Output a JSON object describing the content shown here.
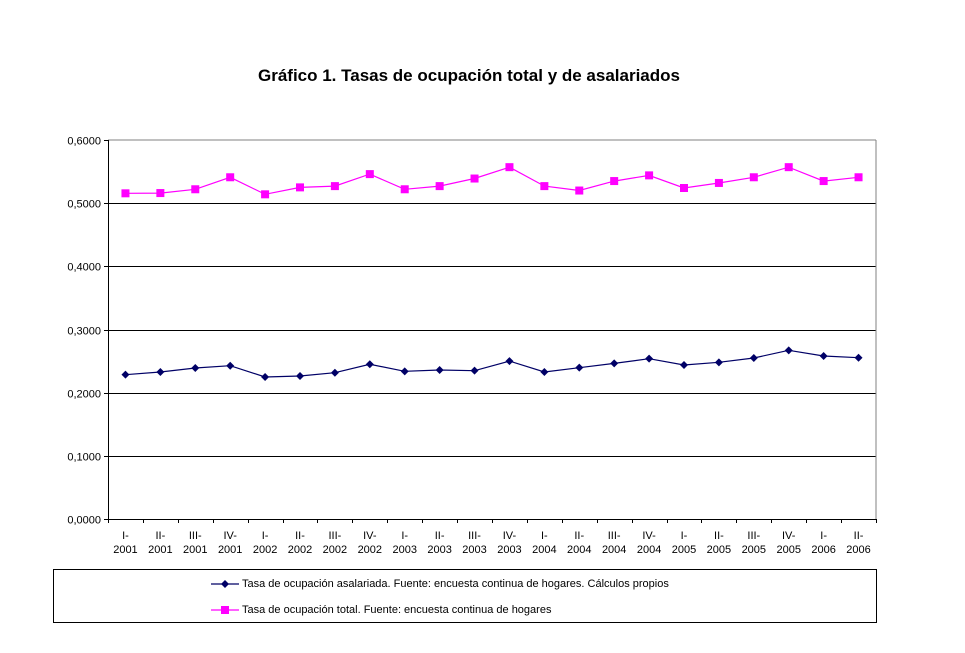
{
  "chart_data": {
    "type": "line",
    "title": "Gráfico 1. Tasas de ocupación total y de asalariados",
    "xlabel": "",
    "ylabel": "",
    "ylim": [
      0,
      0.6
    ],
    "yticks": [
      "0,0000",
      "0,1000",
      "0,2000",
      "0,3000",
      "0,4000",
      "0,5000",
      "0,6000"
    ],
    "ytick_values": [
      0,
      0.1,
      0.2,
      0.3,
      0.4,
      0.5,
      0.6
    ],
    "grid": true,
    "legend_position": "bottom",
    "categories": [
      [
        "I-",
        "2001"
      ],
      [
        "II-",
        "2001"
      ],
      [
        "III-",
        "2001"
      ],
      [
        "IV-",
        "2001"
      ],
      [
        "I-",
        "2002"
      ],
      [
        "II-",
        "2002"
      ],
      [
        "III-",
        "2002"
      ],
      [
        "IV-",
        "2002"
      ],
      [
        "I-",
        "2003"
      ],
      [
        "II-",
        "2003"
      ],
      [
        "III-",
        "2003"
      ],
      [
        "IV-",
        "2003"
      ],
      [
        "I-",
        "2004"
      ],
      [
        "II-",
        "2004"
      ],
      [
        "III-",
        "2004"
      ],
      [
        "IV-",
        "2004"
      ],
      [
        "I-",
        "2005"
      ],
      [
        "II-",
        "2005"
      ],
      [
        "III-",
        "2005"
      ],
      [
        "IV-",
        "2005"
      ],
      [
        "I-",
        "2006"
      ],
      [
        "II-",
        "2006"
      ]
    ],
    "series": [
      {
        "name": "Tasa de ocupación asalariada. Fuente: encuesta continua de hogares. Cálculos propios",
        "color": "#000066",
        "marker": "diamond",
        "values": [
          0.2285,
          0.2327,
          0.239,
          0.2427,
          0.2248,
          0.2264,
          0.2316,
          0.2449,
          0.2338,
          0.2359,
          0.2348,
          0.25,
          0.2327,
          0.2396,
          0.2464,
          0.2538,
          0.2438,
          0.248,
          0.2549,
          0.267,
          0.258,
          0.2553
        ]
      },
      {
        "name": "Tasa de ocupación total. Fuente: encuesta continua de hogares",
        "color": "#FF00FF",
        "marker": "square",
        "values": [
          0.5156,
          0.516,
          0.522,
          0.541,
          0.514,
          0.525,
          0.527,
          0.546,
          0.522,
          0.527,
          0.539,
          0.557,
          0.527,
          0.52,
          0.535,
          0.544,
          0.524,
          0.532,
          0.541,
          0.557,
          0.535,
          0.541
        ]
      }
    ]
  }
}
